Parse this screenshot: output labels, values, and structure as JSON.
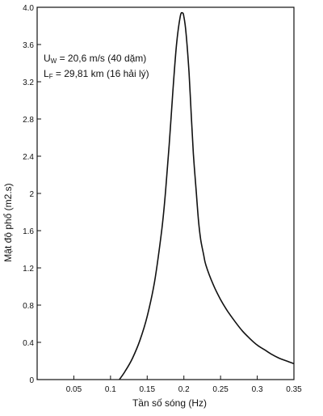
{
  "chart_data": {
    "type": "line",
    "title": "",
    "xlabel": "Tần số sóng (Hz)",
    "ylabel": "Mật độ phổ (m2.s)",
    "xlim": [
      0,
      0.35
    ],
    "ylim": [
      0,
      4.0
    ],
    "xticks": [
      "0.05",
      "0.1",
      "0.15",
      "0.2",
      "0.25",
      "0.3",
      "0.35"
    ],
    "xtick_values": [
      0.05,
      0.1,
      0.15,
      0.2,
      0.25,
      0.3,
      0.35
    ],
    "yticks": [
      "0",
      "0.4",
      "0.8",
      "1.2",
      "1.6",
      "2",
      "2.4",
      "2.8",
      "3.2",
      "3.6",
      "4.0"
    ],
    "ytick_values": [
      0,
      0.4,
      0.8,
      1.2,
      1.6,
      2.0,
      2.4,
      2.8,
      3.2,
      3.6,
      4.0
    ],
    "grid": false,
    "annotations": [
      {
        "main": "U",
        "sub": "W",
        "rest": " = 20,6 m/s (40 dặm)"
      },
      {
        "main": "L",
        "sub": "F",
        "rest": " = 29,81 km (16 hải lý)"
      }
    ],
    "series": [
      {
        "x": [
          0.112,
          0.12,
          0.13,
          0.14,
          0.15,
          0.16,
          0.17,
          0.175,
          0.18,
          0.185,
          0.19,
          0.195,
          0.198,
          0.2,
          0.203,
          0.207,
          0.21,
          0.213,
          0.217,
          0.22,
          0.223,
          0.227,
          0.23,
          0.24,
          0.25,
          0.26,
          0.27,
          0.28,
          0.29,
          0.3,
          0.31,
          0.32,
          0.33,
          0.34,
          0.35
        ],
        "y": [
          0.0,
          0.09,
          0.23,
          0.42,
          0.68,
          1.05,
          1.62,
          2.02,
          2.52,
          3.1,
          3.6,
          3.9,
          3.94,
          3.9,
          3.72,
          3.3,
          2.85,
          2.42,
          2.0,
          1.7,
          1.5,
          1.34,
          1.23,
          1.02,
          0.86,
          0.73,
          0.62,
          0.52,
          0.44,
          0.37,
          0.32,
          0.27,
          0.23,
          0.2,
          0.17
        ]
      }
    ]
  }
}
